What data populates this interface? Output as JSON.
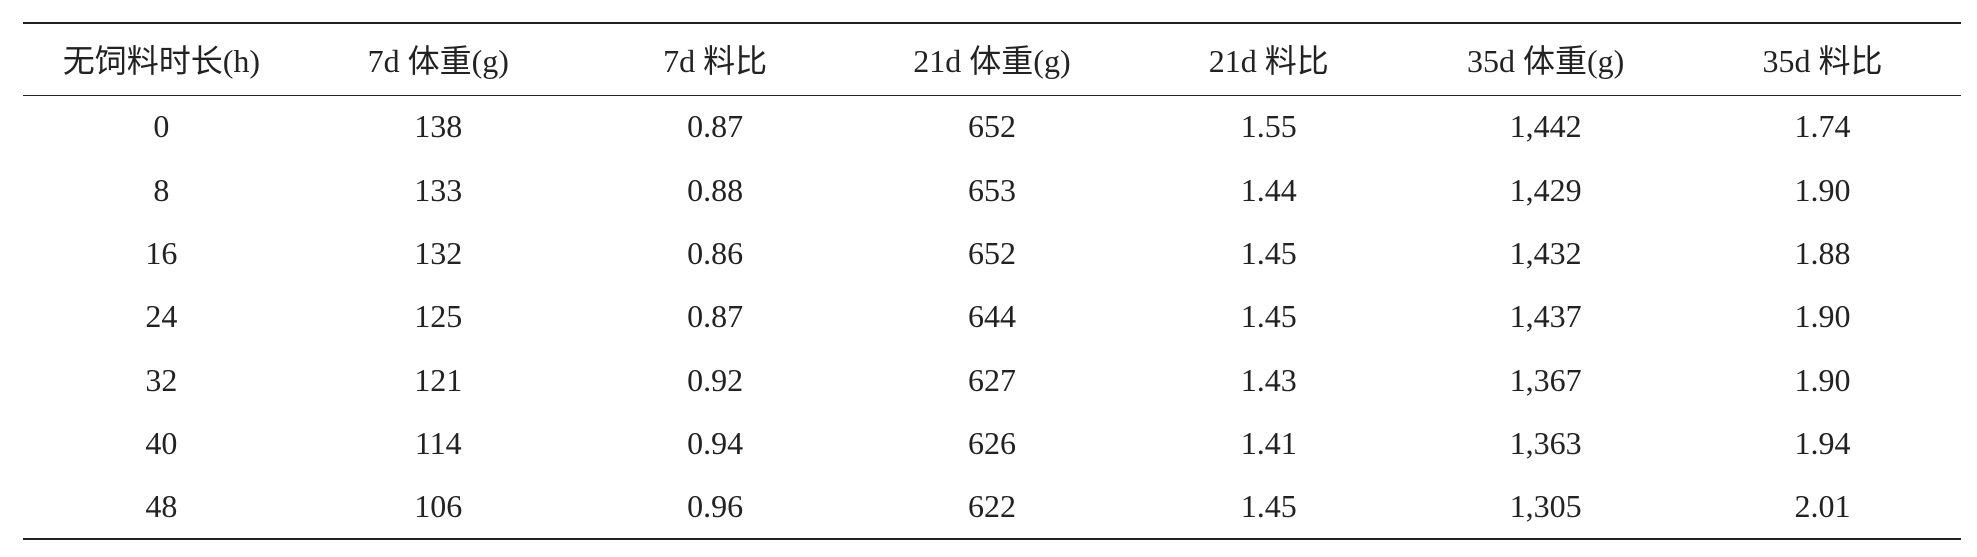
{
  "table": {
    "headers": [
      "无饲料时长(h)",
      "7d 体重(g)",
      "7d 料比",
      "21d 体重(g)",
      "21d 料比",
      "35d 体重(g)",
      "35d 料比"
    ],
    "rows": [
      [
        "0",
        "138",
        "0.87",
        "652",
        "1.55",
        "1,442",
        "1.74"
      ],
      [
        "8",
        "133",
        "0.88",
        "653",
        "1.44",
        "1,429",
        "1.90"
      ],
      [
        "16",
        "132",
        "0.86",
        "652",
        "1.45",
        "1,432",
        "1.88"
      ],
      [
        "24",
        "125",
        "0.87",
        "644",
        "1.45",
        "1,437",
        "1.90"
      ],
      [
        "32",
        "121",
        "0.92",
        "627",
        "1.43",
        "1,367",
        "1.90"
      ],
      [
        "40",
        "114",
        "0.94",
        "626",
        "1.41",
        "1,363",
        "1.94"
      ],
      [
        "48",
        "106",
        "0.96",
        "622",
        "1.45",
        "1,305",
        "2.01"
      ]
    ]
  }
}
